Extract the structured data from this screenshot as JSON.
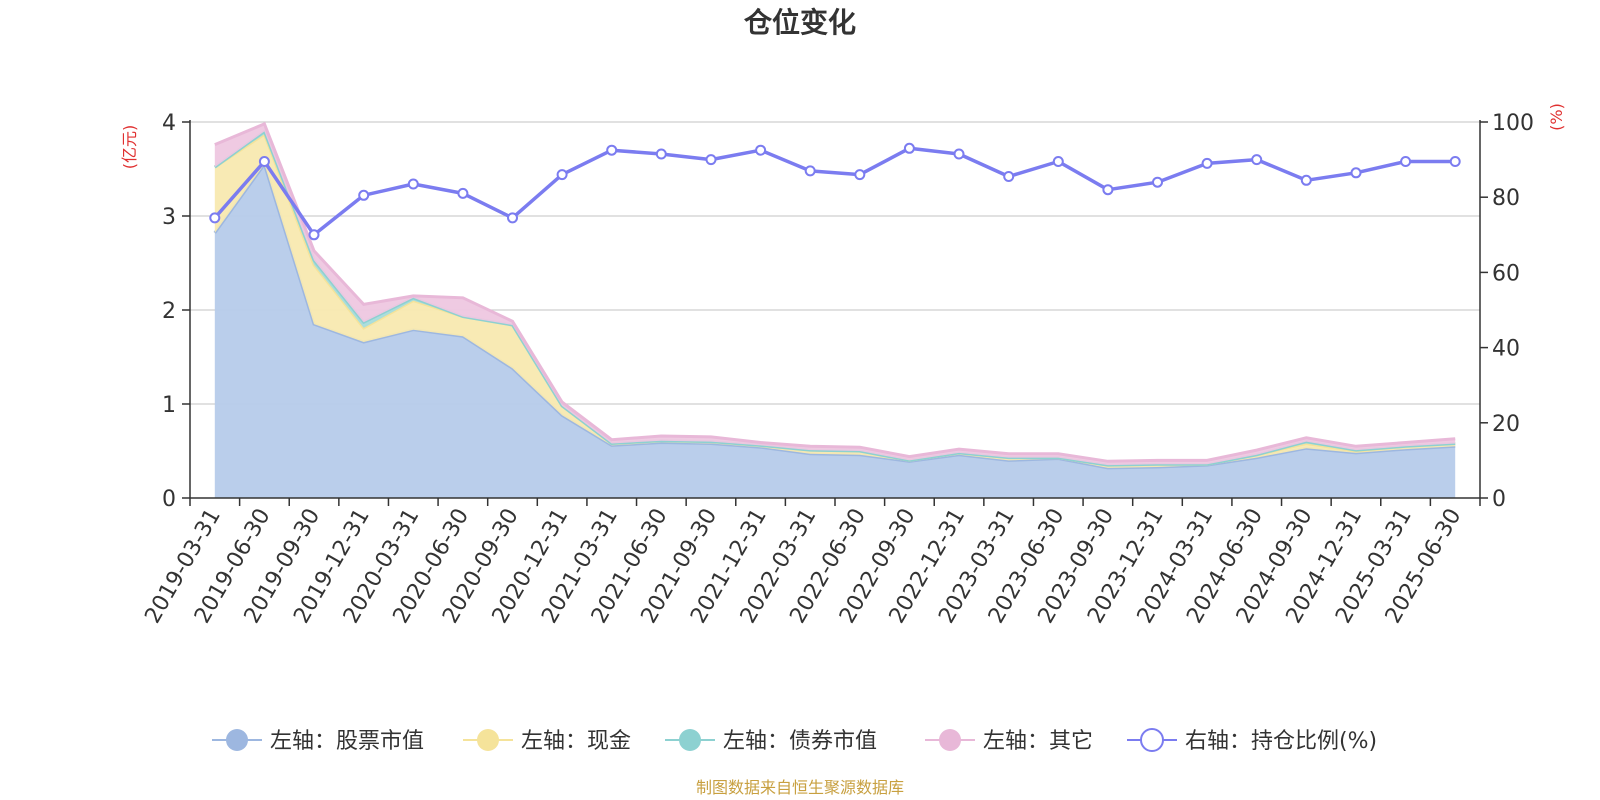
{
  "chart_data": {
    "type": "area",
    "title": "仓位变化",
    "left_axis_unit": "(亿元)",
    "right_axis_unit": "(%)",
    "ylim_left": [
      0,
      4
    ],
    "ylim_right": [
      0,
      100
    ],
    "left_ticks": [
      "0",
      "1",
      "2",
      "3",
      "4"
    ],
    "right_ticks": [
      "0",
      "20",
      "40",
      "60",
      "80",
      "100"
    ],
    "categories": [
      "2019-03-31",
      "2019-06-30",
      "2019-09-30",
      "2019-12-31",
      "2020-03-31",
      "2020-06-30",
      "2020-09-30",
      "2020-12-31",
      "2021-03-31",
      "2021-06-30",
      "2021-09-30",
      "2021-12-31",
      "2022-03-31",
      "2022-06-30",
      "2022-09-30",
      "2022-12-31",
      "2023-03-31",
      "2023-06-30",
      "2023-09-30",
      "2023-12-31",
      "2024-03-31",
      "2024-06-30",
      "2024-09-30",
      "2024-12-31",
      "2025-03-31",
      "2025-06-30"
    ],
    "series": [
      {
        "name": "左轴：股票市值",
        "axis": "left",
        "stack": true,
        "color": "#9db7e0",
        "fill": "#b6cbea",
        "values": [
          2.82,
          3.55,
          1.85,
          1.66,
          1.79,
          1.72,
          1.38,
          0.88,
          0.56,
          0.59,
          0.58,
          0.54,
          0.47,
          0.46,
          0.39,
          0.46,
          0.4,
          0.42,
          0.32,
          0.33,
          0.35,
          0.43,
          0.53,
          0.48,
          0.52,
          0.55
        ]
      },
      {
        "name": "左轴：现金",
        "axis": "left",
        "stack": true,
        "color": "#f5e39a",
        "fill": "#f8e9b0",
        "values": [
          0.7,
          0.32,
          0.63,
          0.15,
          0.31,
          0.21,
          0.46,
          0.1,
          0.02,
          0.02,
          0.02,
          0.02,
          0.04,
          0.04,
          0.01,
          0.02,
          0.03,
          0.01,
          0.03,
          0.03,
          0.01,
          0.03,
          0.05,
          0.02,
          0.03,
          0.03
        ]
      },
      {
        "name": "左轴：债券市值",
        "axis": "left",
        "stack": true,
        "color": "#8dd1d1",
        "fill": "#a6dcdc",
        "values": [
          0.0,
          0.03,
          0.05,
          0.06,
          0.03,
          0.0,
          0.0,
          0.0,
          0.0,
          0.0,
          0.0,
          0.0,
          0.0,
          0.0,
          0.0,
          0.0,
          0.0,
          0.0,
          0.0,
          0.0,
          0.0,
          0.0,
          0.02,
          0.01,
          0.0,
          0.0
        ]
      },
      {
        "name": "左轴：其它",
        "axis": "left",
        "stack": true,
        "color": "#e8b8d8",
        "fill": "#eec7e0",
        "values": [
          0.24,
          0.08,
          0.1,
          0.19,
          0.02,
          0.2,
          0.04,
          0.04,
          0.04,
          0.05,
          0.05,
          0.03,
          0.04,
          0.04,
          0.04,
          0.04,
          0.04,
          0.04,
          0.04,
          0.04,
          0.04,
          0.05,
          0.04,
          0.04,
          0.04,
          0.05
        ]
      },
      {
        "name": "右轴：持仓比例(%)",
        "axis": "right",
        "stack": false,
        "color": "#7b7cf0",
        "values": [
          74.5,
          89.5,
          70.0,
          80.5,
          83.5,
          81.0,
          74.5,
          86.0,
          92.5,
          91.5,
          90.0,
          92.5,
          87.0,
          86.0,
          93.0,
          91.5,
          85.5,
          89.5,
          82.0,
          84.0,
          89.0,
          90.0,
          84.5,
          86.5,
          89.5,
          89.5
        ]
      }
    ]
  },
  "source_text": "制图数据来自恒生聚源数据库"
}
